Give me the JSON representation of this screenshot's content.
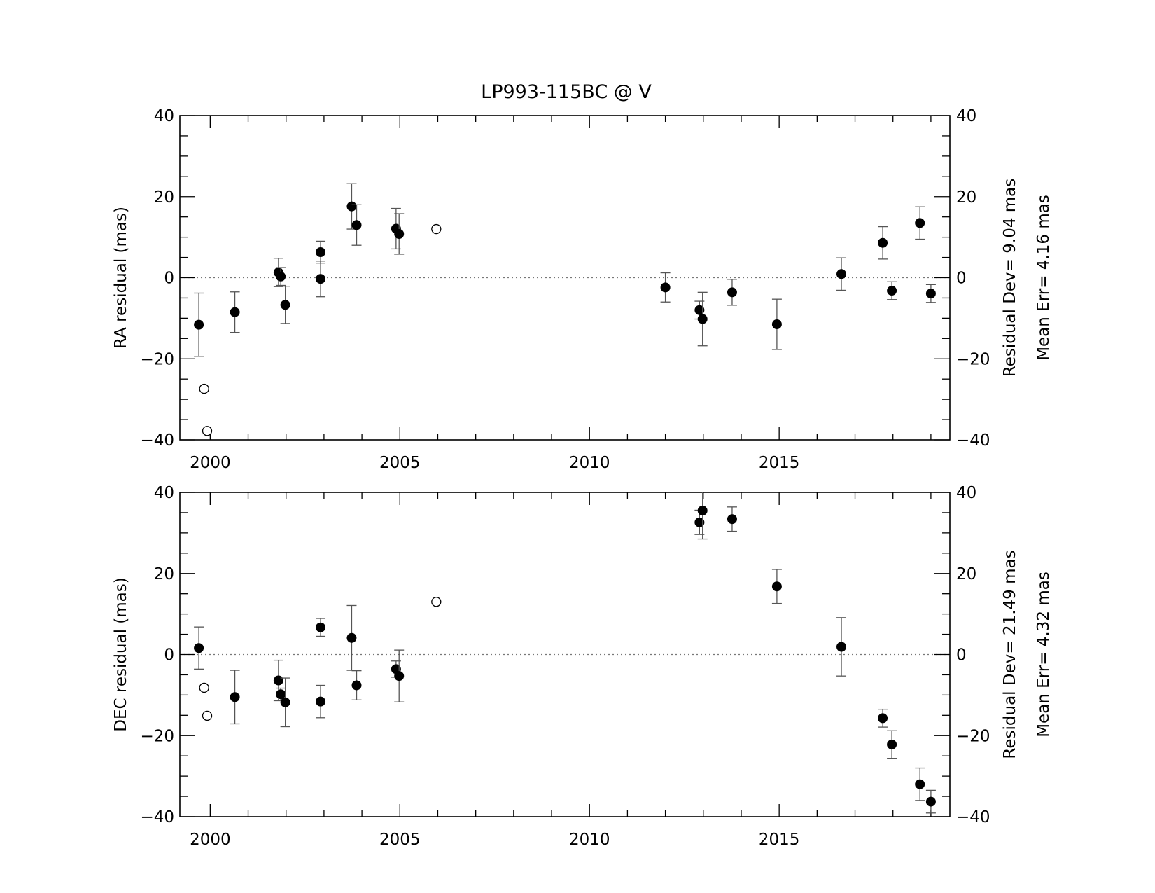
{
  "title": "LP993-115BC @ V",
  "chart_data": [
    {
      "type": "scatter",
      "ylabel": "RA residual (mas)",
      "xlim": [
        1999.2,
        2019.5
      ],
      "ylim": [
        -40,
        40
      ],
      "xticks": [
        "2000",
        "2005",
        "2010",
        "2015"
      ],
      "yticks": [
        "40",
        "20",
        "0",
        "−20",
        "−40"
      ],
      "right_yticks": [
        "40",
        "20",
        "0",
        "−20",
        "−40"
      ],
      "zero_line": "dotted",
      "stats": [
        "Residual Dev=  9.04 mas",
        "Mean Err= 4.16 mas"
      ],
      "points": [
        {
          "x": 1999.7,
          "y": -11.6,
          "err": 7.8,
          "excluded": false
        },
        {
          "x": 2000.65,
          "y": -8.5,
          "err": 5.0,
          "excluded": false
        },
        {
          "x": 2001.8,
          "y": 1.3,
          "err": 3.5,
          "excluded": false
        },
        {
          "x": 2001.86,
          "y": 0.3,
          "err": 2.2,
          "excluded": false
        },
        {
          "x": 2001.98,
          "y": -6.7,
          "err": 4.6,
          "excluded": false
        },
        {
          "x": 2002.91,
          "y": 6.3,
          "err": 2.7,
          "excluded": false
        },
        {
          "x": 2002.91,
          "y": -0.3,
          "err": 4.4,
          "excluded": false
        },
        {
          "x": 2003.73,
          "y": 17.6,
          "err": 5.6,
          "excluded": false
        },
        {
          "x": 2003.86,
          "y": 13.0,
          "err": 5.0,
          "excluded": false
        },
        {
          "x": 2004.9,
          "y": 12.1,
          "err": 5.0,
          "excluded": false
        },
        {
          "x": 2004.98,
          "y": 10.8,
          "err": 5.0,
          "excluded": false
        },
        {
          "x": 2012.0,
          "y": -2.4,
          "err": 3.6,
          "excluded": false
        },
        {
          "x": 2012.9,
          "y": -8.0,
          "err": 2.2,
          "excluded": false
        },
        {
          "x": 2012.98,
          "y": -10.2,
          "err": 6.6,
          "excluded": false
        },
        {
          "x": 2013.76,
          "y": -3.6,
          "err": 3.2,
          "excluded": false
        },
        {
          "x": 2014.94,
          "y": -11.5,
          "err": 6.2,
          "excluded": false
        },
        {
          "x": 2016.64,
          "y": 0.9,
          "err": 4.0,
          "excluded": false
        },
        {
          "x": 2017.73,
          "y": 8.6,
          "err": 4.0,
          "excluded": false
        },
        {
          "x": 2017.97,
          "y": -3.2,
          "err": 2.2,
          "excluded": false
        },
        {
          "x": 2018.71,
          "y": 13.5,
          "err": 4.0,
          "excluded": false
        },
        {
          "x": 2019.0,
          "y": -3.9,
          "err": 2.2,
          "excluded": false
        },
        {
          "x": 1999.84,
          "y": -27.4,
          "err": 0,
          "excluded": true
        },
        {
          "x": 1999.92,
          "y": -37.8,
          "err": 0,
          "excluded": true
        },
        {
          "x": 2005.96,
          "y": 12.0,
          "err": 0,
          "excluded": true
        }
      ]
    },
    {
      "type": "scatter",
      "ylabel": "DEC residual (mas)",
      "xlim": [
        1999.2,
        2019.5
      ],
      "ylim": [
        -40,
        40
      ],
      "xticks": [
        "2000",
        "2005",
        "2010",
        "2015"
      ],
      "yticks": [
        "40",
        "20",
        "0",
        "−20",
        "−40"
      ],
      "right_yticks": [
        "40",
        "20",
        "0",
        "−20",
        "−40"
      ],
      "zero_line": "dotted",
      "stats": [
        "Residual Dev= 21.49 mas",
        "Mean Err= 4.32 mas"
      ],
      "points": [
        {
          "x": 1999.7,
          "y": 1.6,
          "err": 5.2,
          "excluded": false
        },
        {
          "x": 2000.65,
          "y": -10.5,
          "err": 6.6,
          "excluded": false
        },
        {
          "x": 2001.8,
          "y": -6.4,
          "err": 5.0,
          "excluded": false
        },
        {
          "x": 2001.86,
          "y": -9.8,
          "err": 1.5,
          "excluded": false
        },
        {
          "x": 2001.98,
          "y": -11.8,
          "err": 6.0,
          "excluded": false
        },
        {
          "x": 2002.91,
          "y": 6.7,
          "err": 2.2,
          "excluded": false
        },
        {
          "x": 2002.91,
          "y": -11.6,
          "err": 4.0,
          "excluded": false
        },
        {
          "x": 2003.73,
          "y": 4.1,
          "err": 8.0,
          "excluded": false
        },
        {
          "x": 2003.86,
          "y": -7.6,
          "err": 3.6,
          "excluded": false
        },
        {
          "x": 2004.9,
          "y": -3.6,
          "err": 2.0,
          "excluded": false
        },
        {
          "x": 2004.98,
          "y": -5.3,
          "err": 6.4,
          "excluded": false
        },
        {
          "x": 2012.9,
          "y": 32.6,
          "err": 3.0,
          "excluded": false
        },
        {
          "x": 2012.98,
          "y": 35.5,
          "err": 7.0,
          "excluded": false
        },
        {
          "x": 2013.76,
          "y": 33.4,
          "err": 3.0,
          "excluded": false
        },
        {
          "x": 2014.94,
          "y": 16.8,
          "err": 4.2,
          "excluded": false
        },
        {
          "x": 2016.64,
          "y": 1.9,
          "err": 7.2,
          "excluded": false
        },
        {
          "x": 2017.73,
          "y": -15.7,
          "err": 2.2,
          "excluded": false
        },
        {
          "x": 2017.97,
          "y": -22.2,
          "err": 3.4,
          "excluded": false
        },
        {
          "x": 2018.71,
          "y": -32.0,
          "err": 4.0,
          "excluded": false
        },
        {
          "x": 2019.0,
          "y": -36.3,
          "err": 2.8,
          "excluded": false
        },
        {
          "x": 1999.84,
          "y": -8.2,
          "err": 0,
          "excluded": true
        },
        {
          "x": 1999.92,
          "y": -15.1,
          "err": 0,
          "excluded": true
        },
        {
          "x": 2005.96,
          "y": 13.0,
          "err": 0,
          "excluded": true
        }
      ]
    }
  ]
}
